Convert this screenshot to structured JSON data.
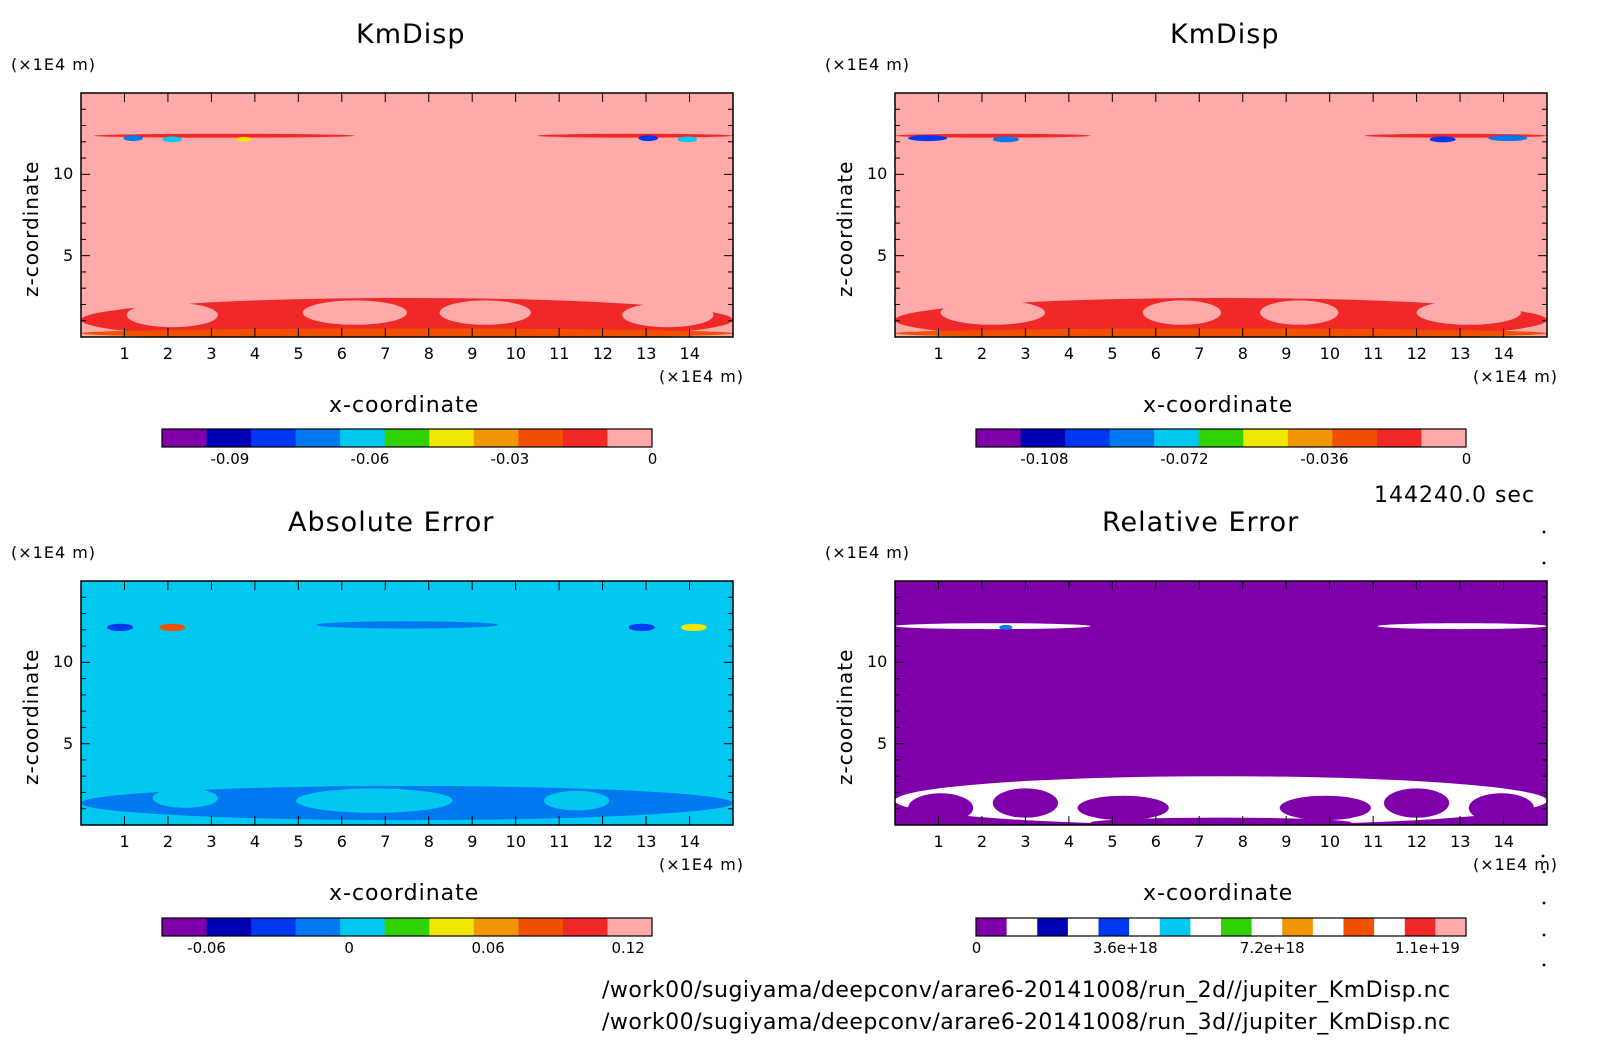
{
  "timestamp": "144240.0 sec",
  "footer": {
    "line1": "/work00/sugiyama/deepconv/arare6-20141008/run_2d//jupiter_KmDisp.nc",
    "line2": "/work00/sugiyama/deepconv/arare6-20141008/run_3d//jupiter_KmDisp.nc"
  },
  "chart_data": [
    {
      "type": "heatmap",
      "title": "KmDisp",
      "xlabel": "x-coordinate",
      "ylabel": "z-coordinate",
      "x_unit": "(×1E4 m)",
      "y_unit": "(×1E4 m)",
      "xlim": [
        0,
        15
      ],
      "ylim": [
        0,
        15
      ],
      "xticks": [
        "1",
        "2",
        "3",
        "4",
        "5",
        "6",
        "7",
        "8",
        "9",
        "10",
        "11",
        "12",
        "13",
        "14"
      ],
      "yticks": [
        "5",
        "10"
      ],
      "colorbar": {
        "range": [
          -0.105,
          0.0
        ],
        "tick_labels": [
          "-0.09",
          "-0.06",
          "-0.03",
          "0"
        ],
        "colors": [
          "#7f00aa",
          "#0000b4",
          "#0037f0",
          "#0078f0",
          "#00c8f0",
          "#32d200",
          "#f0e600",
          "#f09600",
          "#f05000",
          "#f02828",
          "#ffaaaa"
        ]
      },
      "background_value": 0
    },
    {
      "type": "heatmap",
      "title": "KmDisp",
      "xlabel": "x-coordinate",
      "ylabel": "z-coordinate",
      "x_unit": "(×1E4 m)",
      "y_unit": "(×1E4 m)",
      "xlim": [
        0,
        15
      ],
      "ylim": [
        0,
        15
      ],
      "xticks": [
        "1",
        "2",
        "3",
        "4",
        "5",
        "6",
        "7",
        "8",
        "9",
        "10",
        "11",
        "12",
        "13",
        "14"
      ],
      "yticks": [
        "5",
        "10"
      ],
      "colorbar": {
        "range": [
          -0.126,
          0.0
        ],
        "tick_labels": [
          "-0.108",
          "-0.072",
          "-0.036",
          "0"
        ],
        "colors": [
          "#7f00aa",
          "#0000b4",
          "#0037f0",
          "#0078f0",
          "#00c8f0",
          "#32d200",
          "#f0e600",
          "#f09600",
          "#f05000",
          "#f02828",
          "#ffaaaa"
        ]
      },
      "background_value": 0
    },
    {
      "type": "heatmap",
      "title": "Absolute Error",
      "xlabel": "x-coordinate",
      "ylabel": "z-coordinate",
      "x_unit": "(×1E4 m)",
      "y_unit": "(×1E4 m)",
      "xlim": [
        0,
        15
      ],
      "ylim": [
        0,
        15
      ],
      "xticks": [
        "1",
        "2",
        "3",
        "4",
        "5",
        "6",
        "7",
        "8",
        "9",
        "10",
        "11",
        "12",
        "13",
        "14"
      ],
      "yticks": [
        "5",
        "10"
      ],
      "colorbar": {
        "range": [
          -0.08,
          0.13
        ],
        "tick_labels": [
          "-0.06",
          "0",
          "0.06",
          "0.12"
        ],
        "colors": [
          "#7f00aa",
          "#0000b4",
          "#0037f0",
          "#0078f0",
          "#00c8f0",
          "#32d200",
          "#f0e600",
          "#f09600",
          "#f05000",
          "#f02828",
          "#ffaaaa"
        ]
      },
      "background_value": 0
    },
    {
      "type": "heatmap",
      "title": "Relative Error",
      "xlabel": "x-coordinate",
      "ylabel": "z-coordinate",
      "x_unit": "(×1E4 m)",
      "y_unit": "(×1E4 m)",
      "xlim": [
        0,
        15
      ],
      "ylim": [
        0,
        15
      ],
      "xticks": [
        "1",
        "2",
        "3",
        "4",
        "5",
        "6",
        "7",
        "8",
        "9",
        "10",
        "11",
        "12",
        "13",
        "14"
      ],
      "yticks": [
        "5",
        "10"
      ],
      "colorbar": {
        "range": [
          0,
          1.2e+19
        ],
        "tick_labels": [
          "0",
          "3.6e+18",
          "7.2e+18",
          "1.1e+19"
        ],
        "colors": [
          "#7f00aa",
          "#ffffff",
          "#0000b4",
          "#ffffff",
          "#0037f0",
          "#ffffff",
          "#00c8f0",
          "#ffffff",
          "#32d200",
          "#ffffff",
          "#f09600",
          "#ffffff",
          "#f05000",
          "#ffffff",
          "#f02828",
          "#ffaaaa"
        ]
      },
      "background_value": 0
    }
  ]
}
